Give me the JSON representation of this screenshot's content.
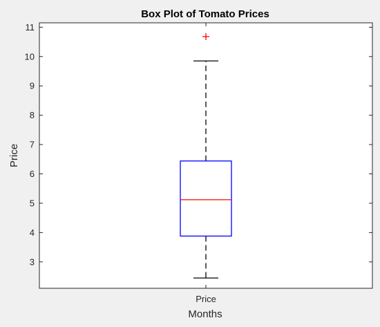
{
  "chart_data": {
    "type": "box",
    "title": "Box Plot of Tomato Prices",
    "xlabel": "Months",
    "ylabel": "Price",
    "categories": [
      "Price"
    ],
    "ylim": [
      2.1,
      11.15
    ],
    "yticks": [
      3,
      4,
      5,
      6,
      7,
      8,
      9,
      10,
      11
    ],
    "grid": false,
    "boxes": [
      {
        "category": "Price",
        "whisker_low": 2.45,
        "q1": 3.88,
        "median": 5.12,
        "q3": 6.44,
        "whisker_high": 9.85,
        "outliers": [
          10.68
        ]
      }
    ],
    "colors": {
      "box": "#0000ff",
      "median": "#ff0000",
      "whisker": "#000000",
      "outlier": "#ff0000"
    }
  }
}
